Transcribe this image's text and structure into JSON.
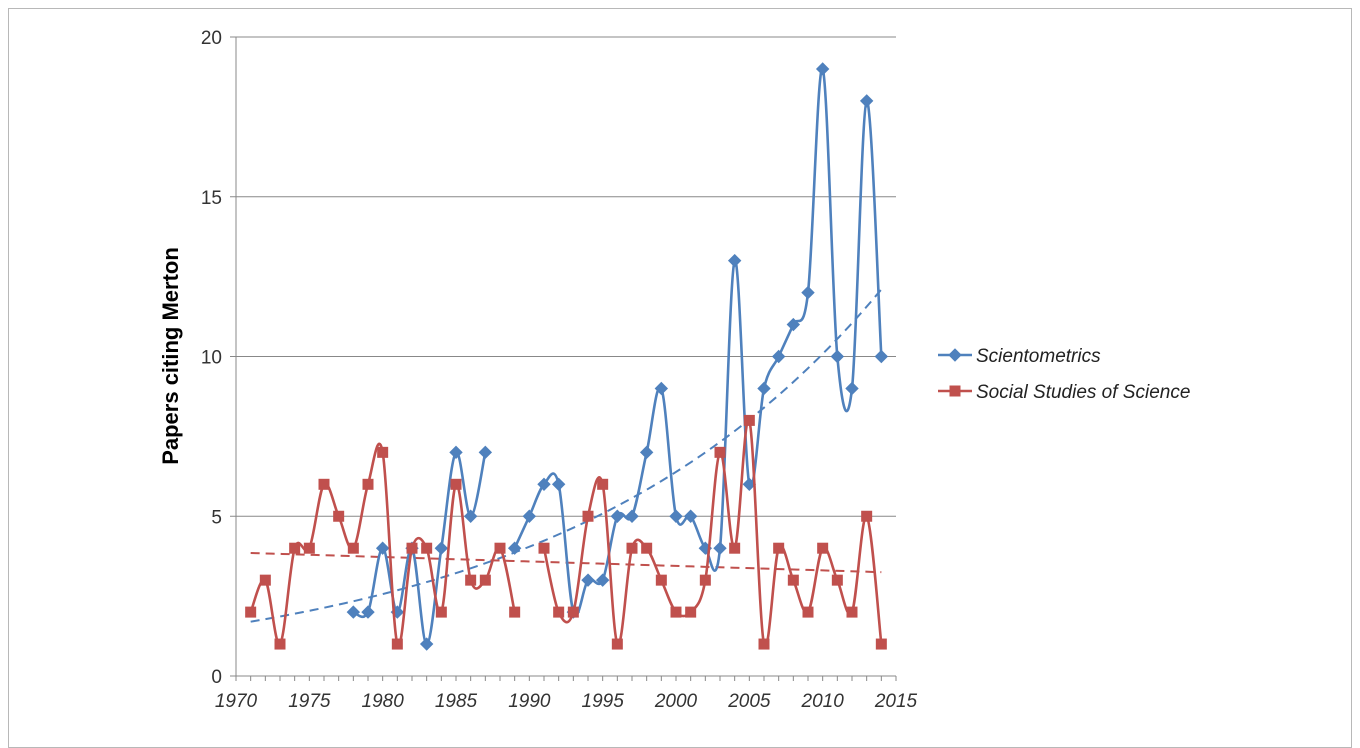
{
  "chart_data": {
    "type": "line",
    "title": "",
    "xlabel": "",
    "ylabel": "Papers citing Merton",
    "xlim": [
      1970,
      2015
    ],
    "ylim": [
      0,
      20
    ],
    "x_ticks": [
      "1970",
      "1975",
      "1980",
      "1985",
      "1990",
      "1995",
      "2000",
      "2005",
      "2010",
      "2015"
    ],
    "y_ticks": [
      "0",
      "5",
      "10",
      "15",
      "20"
    ],
    "grid": "horizontal",
    "legend_position": "right",
    "series": [
      {
        "name": "Scientometrics",
        "color": "#4f81bd",
        "marker": "diamond",
        "segments": [
          {
            "x": [
              1978,
              1979,
              1980,
              1981,
              1982,
              1983,
              1984,
              1985,
              1986,
              1987
            ],
            "y": [
              2,
              2,
              4,
              2,
              4,
              1,
              4,
              7,
              5,
              7
            ]
          },
          {
            "x": [
              1989,
              1990,
              1991,
              1992,
              1993,
              1994,
              1995,
              1996,
              1997,
              1998,
              1999,
              2000,
              2001,
              2002,
              2003,
              2004,
              2005,
              2006,
              2007,
              2008,
              2009,
              2010,
              2011,
              2012,
              2013,
              2014
            ],
            "y": [
              4,
              5,
              6,
              6,
              2,
              3,
              3,
              5,
              5,
              7,
              9,
              5,
              5,
              4,
              4,
              13,
              6,
              9,
              10,
              11,
              12,
              19,
              10,
              9,
              18,
              10
            ]
          }
        ],
        "trend": {
          "type": "exponential",
          "x": [
            1971,
            2014
          ],
          "y": [
            1.7,
            12.1
          ]
        }
      },
      {
        "name": "Social Studies of Science",
        "color": "#c0504d",
        "marker": "square",
        "segments": [
          {
            "x": [
              1971,
              1972,
              1973,
              1974,
              1975,
              1976,
              1977,
              1978,
              1979,
              1980,
              1981,
              1982,
              1983,
              1984,
              1985,
              1986,
              1987,
              1988,
              1989
            ],
            "y": [
              2,
              3,
              1,
              4,
              4,
              6,
              5,
              4,
              6,
              7,
              1,
              4,
              4,
              2,
              6,
              3,
              3,
              4,
              2
            ]
          },
          {
            "x": [
              1991,
              1992,
              1993,
              1994,
              1995,
              1996,
              1997,
              1998,
              1999,
              2000,
              2001,
              2002,
              2003,
              2004,
              2005,
              2006,
              2007,
              2008,
              2009,
              2010,
              2011,
              2012,
              2013,
              2014
            ],
            "y": [
              4,
              2,
              2,
              5,
              6,
              1,
              4,
              4,
              3,
              2,
              2,
              3,
              7,
              4,
              8,
              1,
              4,
              3,
              2,
              4,
              3,
              2,
              5,
              1
            ]
          }
        ],
        "trend": {
          "type": "linear",
          "x": [
            1971,
            2014
          ],
          "y": [
            3.85,
            3.25
          ]
        }
      }
    ]
  }
}
